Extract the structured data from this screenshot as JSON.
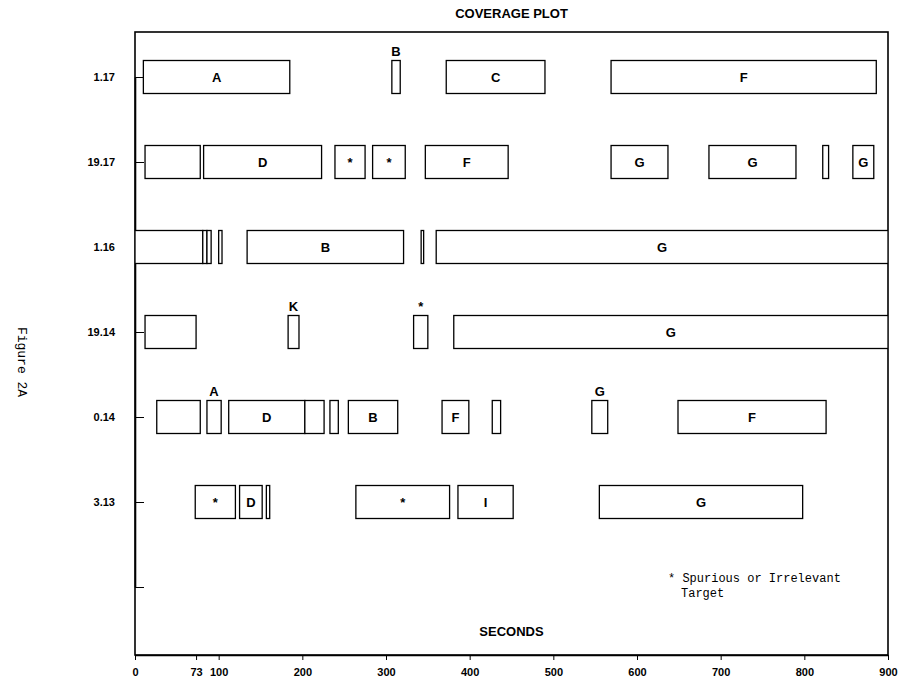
{
  "chart_data": {
    "type": "timeline",
    "title": "COVERAGE PLOT",
    "x_label": "SECONDS",
    "figure_label": "Figure 2A",
    "annotation": [
      "* Spurious or Irrelevant",
      "Target"
    ],
    "categories": [
      "1.17",
      "19.17",
      "1.16",
      "19.14",
      "0.14",
      "3.13",
      null
    ],
    "xlim": [
      0,
      900
    ],
    "xticks": [
      0,
      73,
      100,
      200,
      300,
      400,
      500,
      600,
      700,
      800,
      900
    ],
    "bars": [
      {
        "row": 0,
        "start": 10,
        "end": 185,
        "label": "A"
      },
      {
        "row": 0,
        "start": 307,
        "end": 317,
        "label": "B"
      },
      {
        "row": 0,
        "start": 372,
        "end": 490,
        "label": "C"
      },
      {
        "row": 0,
        "start": 569,
        "end": 886,
        "label": "F"
      },
      {
        "row": 1,
        "start": 12,
        "end": 78
      },
      {
        "row": 1,
        "start": 82,
        "end": 223,
        "label": "D"
      },
      {
        "row": 1,
        "start": 239,
        "end": 275,
        "label": "*"
      },
      {
        "row": 1,
        "start": 284,
        "end": 323,
        "label": "*"
      },
      {
        "row": 1,
        "start": 347,
        "end": 446,
        "label": "F"
      },
      {
        "row": 1,
        "start": 569,
        "end": 637,
        "label": "G"
      },
      {
        "row": 1,
        "start": 686,
        "end": 790,
        "label": "G"
      },
      {
        "row": 1,
        "start": 822,
        "end": 829
      },
      {
        "row": 1,
        "start": 858,
        "end": 883,
        "label": "G"
      },
      {
        "row": 2,
        "start": 0,
        "end": 81
      },
      {
        "row": 2,
        "start": 81,
        "end": 86
      },
      {
        "row": 2,
        "start": 86,
        "end": 91
      },
      {
        "row": 2,
        "start": 100,
        "end": 104
      },
      {
        "row": 2,
        "start": 134,
        "end": 321,
        "label": "B"
      },
      {
        "row": 2,
        "start": 342,
        "end": 345
      },
      {
        "row": 2,
        "start": 360,
        "end": 900,
        "label": "G"
      },
      {
        "row": 3,
        "start": 12,
        "end": 73
      },
      {
        "row": 3,
        "start": 183,
        "end": 196,
        "label": "K"
      },
      {
        "row": 3,
        "start": 333,
        "end": 350,
        "label": "*"
      },
      {
        "row": 3,
        "start": 381,
        "end": 900,
        "label": "G"
      },
      {
        "row": 4,
        "start": 26,
        "end": 78
      },
      {
        "row": 4,
        "start": 86,
        "end": 103,
        "label": "A"
      },
      {
        "row": 4,
        "start": 112,
        "end": 203,
        "label": "D"
      },
      {
        "row": 4,
        "start": 203,
        "end": 226
      },
      {
        "row": 4,
        "start": 233,
        "end": 243
      },
      {
        "row": 4,
        "start": 255,
        "end": 314,
        "label": "B"
      },
      {
        "row": 4,
        "start": 367,
        "end": 399,
        "label": "F"
      },
      {
        "row": 4,
        "start": 427,
        "end": 437
      },
      {
        "row": 4,
        "start": 546,
        "end": 565,
        "label": "G"
      },
      {
        "row": 4,
        "start": 649,
        "end": 826,
        "label": "F"
      },
      {
        "row": 5,
        "start": 72,
        "end": 120,
        "label": "*"
      },
      {
        "row": 5,
        "start": 125,
        "end": 152,
        "label": "D"
      },
      {
        "row": 5,
        "start": 157,
        "end": 161
      },
      {
        "row": 5,
        "start": 264,
        "end": 376,
        "label": "*"
      },
      {
        "row": 5,
        "start": 386,
        "end": 452,
        "label": "I"
      },
      {
        "row": 5,
        "start": 555,
        "end": 798,
        "label": "G"
      }
    ]
  }
}
